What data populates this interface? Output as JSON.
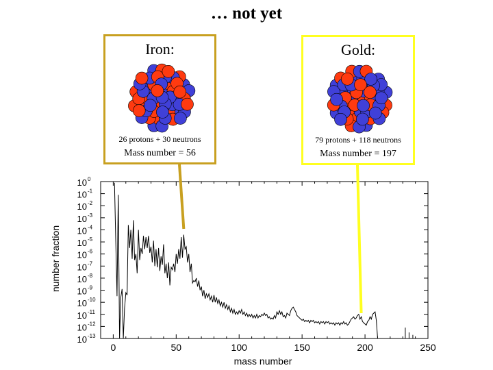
{
  "title": "… not yet",
  "colors": {
    "iron_box_border": "#c8a020",
    "gold_box_border": "#ffff20",
    "proton": "#ff3a10",
    "neutron": "#4040d8",
    "curve": "#000000"
  },
  "iron": {
    "label": "Iron:",
    "composition": "26 protons + 30 neutrons",
    "mass_number": "Mass number = 56",
    "protons": 26,
    "neutrons": 30
  },
  "gold": {
    "label": "Gold:",
    "composition": "79 protons + 118 neutrons",
    "mass_number": "Mass number = 197",
    "protons": 79,
    "neutrons": 118
  },
  "chart_data": {
    "type": "line",
    "title": "",
    "xlabel": "mass number",
    "ylabel": "number fraction",
    "x_scale": "linear",
    "y_scale": "log",
    "xlim": [
      -10,
      250
    ],
    "ylim": [
      1e-13,
      1
    ],
    "x_ticks": [
      0,
      50,
      100,
      150,
      200,
      250
    ],
    "y_tick_exponents": [
      0,
      -1,
      -2,
      -3,
      -4,
      -5,
      -6,
      -7,
      -8,
      -9,
      -10,
      -11,
      -12,
      -13
    ],
    "y_tick_base": "10",
    "grid": false,
    "legend": "none",
    "annotations": [
      {
        "label": "Iron",
        "x": 56
      },
      {
        "label": "Gold",
        "x": 197
      }
    ],
    "series": [
      {
        "points": [
          [
            1,
            -0.1
          ],
          [
            2,
            -5.0
          ],
          [
            3,
            -9.5
          ],
          [
            4,
            -1.1
          ],
          [
            5,
            -13
          ],
          [
            6,
            -9.6
          ],
          [
            7,
            -8.9
          ],
          [
            8,
            -13
          ],
          [
            9,
            -10.5
          ],
          [
            10,
            -9.2
          ],
          [
            11,
            -9.4
          ],
          [
            12,
            -3.6
          ],
          [
            13,
            -5.5
          ],
          [
            14,
            -4.0
          ],
          [
            15,
            -6.4
          ],
          [
            16,
            -3.2
          ],
          [
            17,
            -6.5
          ],
          [
            18,
            -6.0
          ],
          [
            19,
            -7.6
          ],
          [
            20,
            -4.0
          ],
          [
            21,
            -6.5
          ],
          [
            22,
            -5.5
          ],
          [
            23,
            -6.0
          ],
          [
            24,
            -4.5
          ],
          [
            25,
            -5.6
          ],
          [
            26,
            -4.6
          ],
          [
            27,
            -5.5
          ],
          [
            28,
            -4.5
          ],
          [
            29,
            -5.9
          ],
          [
            30,
            -5.4
          ],
          [
            31,
            -6.7
          ],
          [
            32,
            -4.9
          ],
          [
            33,
            -7.0
          ],
          [
            34,
            -5.6
          ],
          [
            35,
            -7.1
          ],
          [
            36,
            -5.5
          ],
          [
            37,
            -7.4
          ],
          [
            38,
            -6.2
          ],
          [
            39,
            -6.9
          ],
          [
            40,
            -5.2
          ],
          [
            41,
            -7.6
          ],
          [
            42,
            -6.8
          ],
          [
            43,
            -8.0
          ],
          [
            44,
            -6.7
          ],
          [
            45,
            -8.6
          ],
          [
            46,
            -7.1
          ],
          [
            47,
            -7.3
          ],
          [
            48,
            -6.8
          ],
          [
            49,
            -7.5
          ],
          [
            50,
            -6.0
          ],
          [
            51,
            -6.8
          ],
          [
            52,
            -5.6
          ],
          [
            53,
            -6.4
          ],
          [
            54,
            -4.6
          ],
          [
            55,
            -6.3
          ],
          [
            56,
            -4.4
          ],
          [
            57,
            -5.6
          ],
          [
            58,
            -5.4
          ],
          [
            59,
            -6.7
          ],
          [
            60,
            -6.0
          ],
          [
            61,
            -7.5
          ],
          [
            62,
            -6.8
          ],
          [
            63,
            -8.4
          ],
          [
            64,
            -8.2
          ],
          [
            65,
            -8.3
          ],
          [
            66,
            -8.0
          ],
          [
            67,
            -8.7
          ],
          [
            68,
            -8.2
          ],
          [
            69,
            -9.0
          ],
          [
            70,
            -8.7
          ],
          [
            71,
            -9.5
          ],
          [
            72,
            -9.0
          ],
          [
            73,
            -9.7
          ],
          [
            74,
            -9.3
          ],
          [
            75,
            -9.6
          ],
          [
            76,
            -9.3
          ],
          [
            77,
            -9.8
          ],
          [
            78,
            -9.5
          ],
          [
            79,
            -10.0
          ],
          [
            80,
            -9.4
          ],
          [
            81,
            -10.0
          ],
          [
            82,
            -9.6
          ],
          [
            83,
            -10.1
          ],
          [
            84,
            -9.8
          ],
          [
            85,
            -10.3
          ],
          [
            86,
            -10.0
          ],
          [
            87,
            -10.4
          ],
          [
            88,
            -10.0
          ],
          [
            89,
            -10.5
          ],
          [
            90,
            -10.2
          ],
          [
            91,
            -10.6
          ],
          [
            92,
            -10.3
          ],
          [
            93,
            -10.8
          ],
          [
            94,
            -10.5
          ],
          [
            95,
            -10.9
          ],
          [
            96,
            -10.6
          ],
          [
            97,
            -11.0
          ],
          [
            98,
            -10.8
          ],
          [
            99,
            -11.0
          ],
          [
            100,
            -10.7
          ],
          [
            101,
            -10.9
          ],
          [
            102,
            -10.6
          ],
          [
            103,
            -11.0
          ],
          [
            104,
            -10.8
          ],
          [
            105,
            -11.1
          ],
          [
            106,
            -10.9
          ],
          [
            107,
            -11.2
          ],
          [
            108,
            -11.0
          ],
          [
            109,
            -11.2
          ],
          [
            110,
            -11.0
          ],
          [
            111,
            -11.3
          ],
          [
            112,
            -11.1
          ],
          [
            113,
            -11.3
          ],
          [
            114,
            -11.0
          ],
          [
            115,
            -11.3
          ],
          [
            116,
            -11.1
          ],
          [
            117,
            -11.2
          ],
          [
            118,
            -11.0
          ],
          [
            119,
            -11.1
          ],
          [
            120,
            -10.9
          ],
          [
            121,
            -11.1
          ],
          [
            122,
            -11.0
          ],
          [
            123,
            -11.3
          ],
          [
            124,
            -11.2
          ],
          [
            125,
            -11.4
          ],
          [
            126,
            -11.3
          ],
          [
            127,
            -11.4
          ],
          [
            128,
            -11.1
          ],
          [
            129,
            -11.3
          ],
          [
            130,
            -10.8
          ],
          [
            131,
            -11.0
          ],
          [
            132,
            -10.7
          ],
          [
            133,
            -11.0
          ],
          [
            134,
            -10.8
          ],
          [
            135,
            -11.2
          ],
          [
            136,
            -11.1
          ],
          [
            137,
            -11.3
          ],
          [
            138,
            -10.9
          ],
          [
            139,
            -11.0
          ],
          [
            140,
            -11.1
          ],
          [
            141,
            -10.7
          ],
          [
            142,
            -10.5
          ],
          [
            143,
            -10.4
          ],
          [
            144,
            -10.6
          ],
          [
            145,
            -10.8
          ],
          [
            146,
            -11.1
          ],
          [
            147,
            -11.2
          ],
          [
            148,
            -11.3
          ],
          [
            149,
            -11.4
          ],
          [
            150,
            -11.5
          ],
          [
            151,
            -11.4
          ],
          [
            152,
            -11.6
          ],
          [
            153,
            -11.5
          ],
          [
            154,
            -11.6
          ],
          [
            155,
            -11.5
          ],
          [
            156,
            -11.7
          ],
          [
            157,
            -11.5
          ],
          [
            158,
            -11.6
          ],
          [
            159,
            -11.5
          ],
          [
            160,
            -11.7
          ],
          [
            161,
            -11.6
          ],
          [
            162,
            -11.7
          ],
          [
            163,
            -11.6
          ],
          [
            164,
            -11.8
          ],
          [
            165,
            -11.6
          ],
          [
            166,
            -11.7
          ],
          [
            167,
            -11.6
          ],
          [
            168,
            -11.8
          ],
          [
            169,
            -11.6
          ],
          [
            170,
            -11.7
          ],
          [
            171,
            -11.6
          ],
          [
            172,
            -11.8
          ],
          [
            173,
            -11.7
          ],
          [
            174,
            -11.8
          ],
          [
            175,
            -11.7
          ],
          [
            176,
            -11.9
          ],
          [
            177,
            -11.7
          ],
          [
            178,
            -11.8
          ],
          [
            179,
            -11.7
          ],
          [
            180,
            -11.9
          ],
          [
            181,
            -11.7
          ],
          [
            182,
            -11.8
          ],
          [
            183,
            -11.6
          ],
          [
            184,
            -11.8
          ],
          [
            185,
            -11.7
          ],
          [
            186,
            -11.9
          ],
          [
            187,
            -11.8
          ],
          [
            188,
            -11.6
          ],
          [
            189,
            -11.4
          ],
          [
            190,
            -11.3
          ],
          [
            191,
            -11.2
          ],
          [
            192,
            -11.4
          ],
          [
            193,
            -11.3
          ],
          [
            194,
            -11.1
          ],
          [
            195,
            -11.0
          ],
          [
            196,
            -11.4
          ],
          [
            197,
            -11.2
          ],
          [
            198,
            -11.6
          ],
          [
            199,
            -11.7
          ],
          [
            200,
            -11.8
          ],
          [
            201,
            -11.9
          ],
          [
            202,
            -11.6
          ],
          [
            203,
            -11.5
          ],
          [
            204,
            -11.2
          ],
          [
            205,
            -11.4
          ],
          [
            206,
            -11.0
          ],
          [
            207,
            -10.9
          ],
          [
            208,
            -10.8
          ],
          [
            209,
            -11.5
          ],
          [
            210,
            -13
          ]
        ]
      }
    ],
    "isolated_marks": [
      {
        "x": 232,
        "y_from": -13,
        "y_to": -12.1
      },
      {
        "x": 235,
        "y_from": -13,
        "y_to": -12.5
      },
      {
        "x": 238,
        "y_from": -13,
        "y_to": -12.7
      }
    ]
  }
}
